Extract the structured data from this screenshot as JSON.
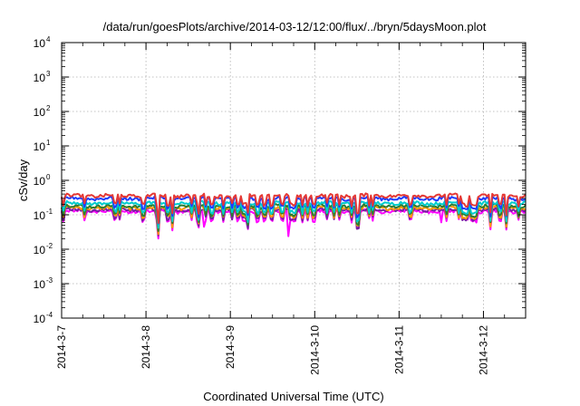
{
  "chart_data": {
    "type": "line",
    "title": "/data/run/goesPlots/archive/2014-03-12/12:00/flux/../bryn/5daysMoon.plot",
    "xlabel": "Coordinated Universal Time (UTC)",
    "ylabel": "cSv/day",
    "yscale": "log",
    "ylim": [
      0.0001,
      10000
    ],
    "xlim": [
      "2014-03-07T00:00",
      "2014-03-12T12:00"
    ],
    "x_ticks": [
      "2014-3-7",
      "2014-3-8",
      "2014-3-9",
      "2014-3-10",
      "2014-3-11",
      "2014-3-12"
    ],
    "y_ticks": [
      {
        "base": "10",
        "exp": "-4"
      },
      {
        "base": "10",
        "exp": "-3"
      },
      {
        "base": "10",
        "exp": "-2"
      },
      {
        "base": "10",
        "exp": "-1"
      },
      {
        "base": "10",
        "exp": "0"
      },
      {
        "base": "10",
        "exp": "1"
      },
      {
        "base": "10",
        "exp": "2"
      },
      {
        "base": "10",
        "exp": "3"
      },
      {
        "base": "10",
        "exp": "4"
      }
    ],
    "grid": true,
    "legend": "none",
    "series": [
      {
        "color": "#ff00ff",
        "base": 0.125,
        "spikes": [
          [
            1.68,
            0.045
          ],
          [
            2.68,
            0.024
          ],
          [
            4.5,
            0.06
          ]
        ]
      },
      {
        "color": "#7b1fa2",
        "base": 0.14
      },
      {
        "color": "#ff9900",
        "base": 0.16
      },
      {
        "color": "#2e7d32",
        "base": 0.18
      },
      {
        "color": "#00cccc",
        "base": 0.22
      },
      {
        "color": "#1e3cff",
        "base": 0.3
      },
      {
        "color": "#e53935",
        "base": 0.36
      }
    ]
  }
}
